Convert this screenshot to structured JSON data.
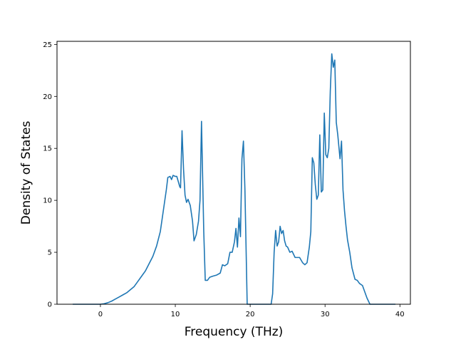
{
  "chart_data": {
    "type": "line",
    "title": "",
    "xlabel": "Frequency (THz)",
    "ylabel": "Density of States",
    "xlim": [
      -5.8,
      41.4
    ],
    "ylim": [
      0,
      25.3
    ],
    "xticks": [
      0,
      10,
      20,
      30,
      40
    ],
    "yticks": [
      0,
      5,
      10,
      15,
      20,
      25
    ],
    "grid": false,
    "legend": "none",
    "line_color": "#1f77b4",
    "series": [
      {
        "x": [
          -3.7,
          -3.0,
          -2.0,
          -1.0,
          0.0,
          0.5,
          1.0,
          1.5,
          2.0,
          2.5,
          3.0,
          3.5,
          4.0,
          4.5,
          5.0,
          5.5,
          6.0,
          6.5,
          7.0,
          7.5,
          8.0,
          8.5,
          8.8,
          9.0,
          9.3,
          9.5,
          9.7,
          10.0,
          10.2,
          10.4,
          10.6,
          10.7,
          10.9,
          11.1,
          11.3,
          11.5,
          11.7,
          12.0,
          12.3,
          12.5,
          12.8,
          13.1,
          13.3,
          13.5,
          13.8,
          14.0,
          14.3,
          14.6,
          15.0,
          15.5,
          16.0,
          16.3,
          16.6,
          17.0,
          17.3,
          17.6,
          17.9,
          18.1,
          18.3,
          18.5,
          18.7,
          18.9,
          19.1,
          19.3,
          19.6,
          20.0,
          21.0,
          22.0,
          22.8,
          23.0,
          23.2,
          23.4,
          23.6,
          23.8,
          24.0,
          24.2,
          24.4,
          24.6,
          24.8,
          25.0,
          25.3,
          25.6,
          26.0,
          26.3,
          26.6,
          27.0,
          27.3,
          27.6,
          27.9,
          28.1,
          28.3,
          28.5,
          28.7,
          28.9,
          29.1,
          29.3,
          29.5,
          29.7,
          29.9,
          30.1,
          30.3,
          30.5,
          30.7,
          30.9,
          31.1,
          31.3,
          31.5,
          31.7,
          32.0,
          32.2,
          32.4,
          32.6,
          32.8,
          33.0,
          33.3,
          33.6,
          34.0,
          34.3,
          34.6,
          35.0,
          35.3,
          35.6,
          36.0,
          37.0,
          38.0,
          39.0,
          39.4
        ],
        "y": [
          0,
          0,
          0,
          0,
          0,
          0.05,
          0.15,
          0.3,
          0.5,
          0.7,
          0.9,
          1.1,
          1.4,
          1.7,
          2.2,
          2.7,
          3.2,
          3.9,
          4.6,
          5.6,
          7.0,
          9.5,
          11.0,
          12.2,
          12.3,
          12.0,
          12.4,
          12.3,
          12.3,
          11.8,
          11.3,
          11.2,
          16.7,
          13.0,
          10.5,
          9.8,
          10.1,
          9.5,
          8.0,
          6.1,
          6.7,
          8.0,
          10.0,
          17.6,
          7.0,
          2.3,
          2.3,
          2.6,
          2.7,
          2.8,
          3.0,
          3.8,
          3.7,
          3.9,
          5.0,
          5.0,
          6.0,
          7.3,
          5.5,
          8.3,
          6.5,
          14.0,
          15.7,
          11.0,
          0,
          0,
          0,
          0,
          0,
          1.0,
          5.0,
          7.1,
          5.6,
          6.0,
          7.5,
          6.8,
          7.1,
          6.1,
          5.6,
          5.5,
          5.0,
          5.1,
          4.5,
          4.5,
          4.5,
          4.0,
          3.8,
          4.0,
          5.5,
          7.0,
          14.1,
          13.6,
          11.5,
          10.1,
          10.5,
          16.3,
          10.8,
          11.0,
          18.4,
          14.4,
          14.1,
          15.0,
          20.5,
          24.1,
          22.8,
          23.5,
          17.5,
          16.3,
          14.0,
          15.7,
          11.0,
          9.0,
          7.5,
          6.2,
          5.0,
          3.5,
          2.4,
          2.3,
          2.0,
          1.8,
          1.2,
          0.6,
          0,
          0,
          0,
          0,
          0
        ]
      }
    ]
  }
}
